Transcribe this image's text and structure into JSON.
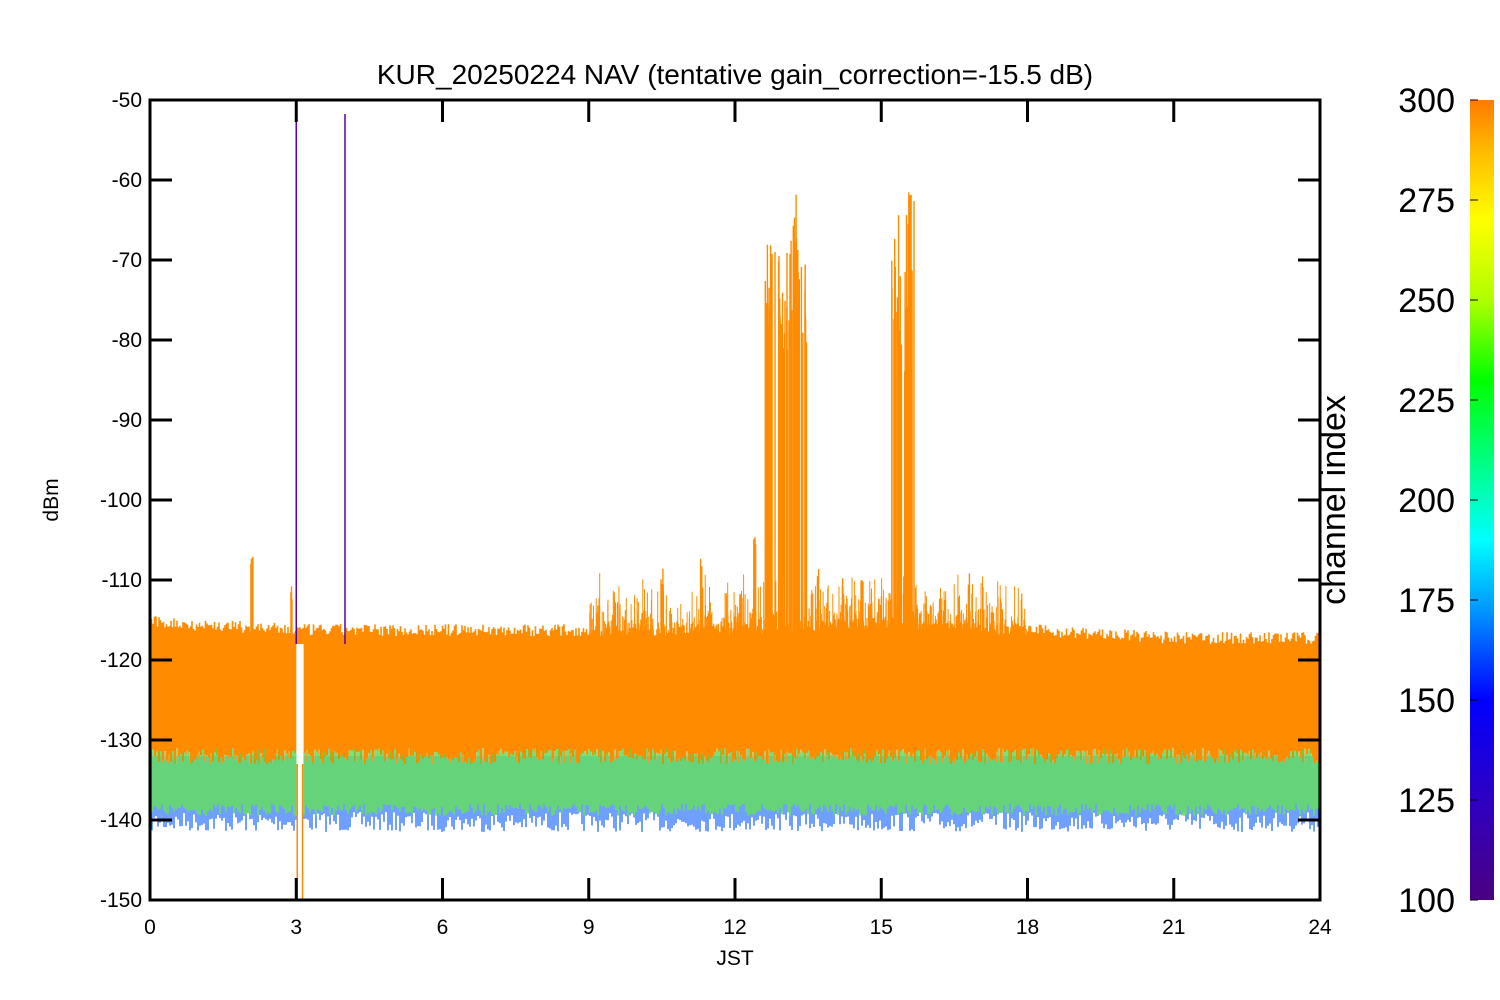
{
  "chart_data": {
    "type": "line",
    "title": "KUR_20250224 NAV (tentative gain_correction=-15.5 dB)",
    "xlabel": "JST",
    "ylabel": "dBm",
    "xlim": [
      0,
      24
    ],
    "ylim": [
      -150,
      -50
    ],
    "x_ticks": [
      "0",
      "3",
      "6",
      "9",
      "12",
      "15",
      "18",
      "21",
      "24"
    ],
    "y_ticks": [
      "-50",
      "-60",
      "-70",
      "-80",
      "-90",
      "-100",
      "-110",
      "-120",
      "-130",
      "-140",
      "-150"
    ],
    "grid": false,
    "colorbar": {
      "label": "channel index",
      "range": [
        100,
        300
      ],
      "ticks": [
        "100",
        "125",
        "150",
        "175",
        "200",
        "225",
        "250",
        "275",
        "300"
      ]
    },
    "series": [
      {
        "color": "#ff8c00",
        "noise_floor_x": [
          0,
          3,
          6,
          9,
          12,
          15,
          18,
          21,
          24
        ],
        "noise_floor_upper_dbm": [
          -116,
          -117,
          -117,
          -117,
          -117,
          -116,
          -117,
          -118,
          -118
        ],
        "noise_floor_lower_dbm": [
          -133,
          -133,
          -133,
          -133,
          -133,
          -133,
          -133,
          -133,
          -133
        ],
        "spike_x": [
          2.1,
          2.9,
          9.2,
          10.5,
          11.3,
          12.4,
          12.7,
          12.9,
          13.0,
          13.1,
          13.25,
          13.4,
          13.7,
          14.2,
          14.6,
          15.3,
          15.45,
          15.6,
          16.2,
          16.8
        ],
        "spike_peak_dbm": [
          -107,
          -110,
          -112,
          -108,
          -106,
          -103,
          -68,
          -67,
          -75,
          -66,
          -60,
          -68,
          -108,
          -109,
          -110,
          -64,
          -70,
          -60,
          -111,
          -109
        ]
      },
      {
        "color": "#5a00a8",
        "spike_x": [
          3.0,
          4.0
        ],
        "spike_peak_dbm": [
          -50,
          -50
        ]
      },
      {
        "color": "#22cc22",
        "noise_floor_lower_dbm": [
          -137,
          -137,
          -137,
          -137,
          -137,
          -137,
          -137,
          -137,
          -137
        ]
      },
      {
        "color": "#1060ff",
        "noise_floor_lower_dbm": [
          -138,
          -138,
          -138,
          -138,
          -138,
          -138,
          -138,
          -138,
          -138
        ]
      }
    ],
    "gaps": [
      {
        "x_start": 3.0,
        "x_end": 3.15,
        "drop_to_dbm": -150
      }
    ]
  }
}
